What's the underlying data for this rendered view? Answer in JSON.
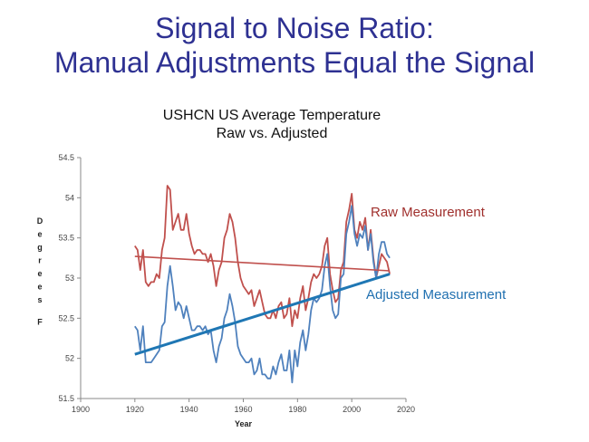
{
  "slide": {
    "title_line1": "Signal to Noise Ratio:",
    "title_line2": "Manual Adjustments Equal the Signal"
  },
  "colors": {
    "title": "#2e3192",
    "raw": "#c0504d",
    "adjusted": "#4f81bd",
    "adjusted_trend": "#1f77b4",
    "raw_label": "#a0302d",
    "adjusted_label": "#2070b0"
  },
  "chart_data": {
    "type": "line",
    "title": "USHCN US Average Temperature",
    "subtitle": "Raw vs. Adjusted",
    "xlabel": "Year",
    "ylabel": "Degrees F",
    "xlim": [
      1900,
      2020
    ],
    "ylim": [
      51.5,
      54.5
    ],
    "xticks": [
      1900,
      1920,
      1940,
      1960,
      1980,
      2000,
      2020
    ],
    "yticks": [
      51.5,
      52,
      52.5,
      53,
      53.5,
      54,
      54.5
    ],
    "grid": false,
    "annotations": [
      "Raw Measurement",
      "Adjusted Measurement"
    ],
    "series": [
      {
        "color": "#c0504d",
        "x": [
          1920,
          1921,
          1922,
          1923,
          1924,
          1925,
          1926,
          1927,
          1928,
          1929,
          1930,
          1931,
          1932,
          1933,
          1934,
          1935,
          1936,
          1937,
          1938,
          1939,
          1940,
          1941,
          1942,
          1943,
          1944,
          1945,
          1946,
          1947,
          1948,
          1949,
          1950,
          1951,
          1952,
          1953,
          1954,
          1955,
          1956,
          1957,
          1958,
          1959,
          1960,
          1961,
          1962,
          1963,
          1964,
          1965,
          1966,
          1967,
          1968,
          1969,
          1970,
          1971,
          1972,
          1973,
          1974,
          1975,
          1976,
          1977,
          1978,
          1979,
          1980,
          1981,
          1982,
          1983,
          1984,
          1985,
          1986,
          1987,
          1988,
          1989,
          1990,
          1991,
          1992,
          1993,
          1994,
          1995,
          1996,
          1997,
          1998,
          1999,
          2000,
          2001,
          2002,
          2003,
          2004,
          2005,
          2006,
          2007,
          2008,
          2009,
          2010,
          2011,
          2012,
          2013,
          2014
        ],
        "values": [
          53.4,
          53.35,
          53.1,
          53.35,
          52.95,
          52.9,
          52.95,
          52.95,
          53.05,
          53.0,
          53.35,
          53.5,
          54.15,
          54.1,
          53.6,
          53.7,
          53.8,
          53.6,
          53.6,
          53.8,
          53.55,
          53.4,
          53.3,
          53.35,
          53.35,
          53.3,
          53.3,
          53.2,
          53.3,
          53.15,
          52.9,
          53.1,
          53.2,
          53.5,
          53.6,
          53.8,
          53.7,
          53.5,
          53.2,
          53.0,
          52.9,
          52.85,
          52.8,
          52.85,
          52.65,
          52.75,
          52.85,
          52.7,
          52.55,
          52.5,
          52.5,
          52.6,
          52.5,
          52.65,
          52.7,
          52.5,
          52.55,
          52.75,
          52.4,
          52.6,
          52.5,
          52.75,
          52.9,
          52.6,
          52.75,
          52.95,
          53.05,
          53.0,
          53.05,
          53.15,
          53.4,
          53.5,
          53.05,
          52.85,
          52.7,
          52.75,
          53.1,
          53.2,
          53.7,
          53.85,
          54.05,
          53.6,
          53.5,
          53.7,
          53.6,
          53.75,
          53.35,
          53.6,
          53.25,
          53.0,
          53.15,
          53.3,
          53.25,
          53.2,
          53.05
        ]
      },
      {
        "color": "#4f81bd",
        "x": [
          1920,
          1921,
          1922,
          1923,
          1924,
          1925,
          1926,
          1927,
          1928,
          1929,
          1930,
          1931,
          1932,
          1933,
          1934,
          1935,
          1936,
          1937,
          1938,
          1939,
          1940,
          1941,
          1942,
          1943,
          1944,
          1945,
          1946,
          1947,
          1948,
          1949,
          1950,
          1951,
          1952,
          1953,
          1954,
          1955,
          1956,
          1957,
          1958,
          1959,
          1960,
          1961,
          1962,
          1963,
          1964,
          1965,
          1966,
          1967,
          1968,
          1969,
          1970,
          1971,
          1972,
          1973,
          1974,
          1975,
          1976,
          1977,
          1978,
          1979,
          1980,
          1981,
          1982,
          1983,
          1984,
          1985,
          1986,
          1987,
          1988,
          1989,
          1990,
          1991,
          1992,
          1993,
          1994,
          1995,
          1996,
          1997,
          1998,
          1999,
          2000,
          2001,
          2002,
          2003,
          2004,
          2005,
          2006,
          2007,
          2008,
          2009,
          2010,
          2011,
          2012,
          2013,
          2014
        ],
        "values": [
          52.4,
          52.35,
          52.1,
          52.4,
          51.95,
          51.95,
          51.95,
          52.0,
          52.05,
          52.1,
          52.4,
          52.45,
          52.9,
          53.15,
          52.9,
          52.6,
          52.7,
          52.65,
          52.5,
          52.65,
          52.5,
          52.35,
          52.35,
          52.4,
          52.4,
          52.35,
          52.4,
          52.3,
          52.35,
          52.1,
          51.95,
          52.15,
          52.25,
          52.5,
          52.6,
          52.8,
          52.65,
          52.45,
          52.15,
          52.05,
          52.0,
          51.95,
          51.95,
          52.0,
          51.8,
          51.85,
          52.0,
          51.8,
          51.8,
          51.75,
          51.75,
          51.9,
          51.8,
          51.95,
          52.05,
          51.85,
          51.85,
          52.1,
          51.7,
          52.1,
          51.9,
          52.2,
          52.35,
          52.1,
          52.3,
          52.6,
          52.75,
          52.7,
          52.75,
          52.85,
          53.15,
          53.3,
          52.9,
          52.6,
          52.5,
          52.55,
          53.0,
          53.05,
          53.55,
          53.7,
          53.9,
          53.55,
          53.4,
          53.55,
          53.5,
          53.65,
          53.35,
          53.55,
          53.2,
          53.0,
          53.3,
          53.45,
          53.45,
          53.3,
          53.25
        ]
      },
      {
        "color": "#c0504d",
        "x": [
          1920,
          2014
        ],
        "values": [
          53.27,
          53.09
        ]
      },
      {
        "color": "#1f77b4",
        "x": [
          1920,
          2014
        ],
        "values": [
          52.05,
          53.05
        ]
      }
    ]
  }
}
